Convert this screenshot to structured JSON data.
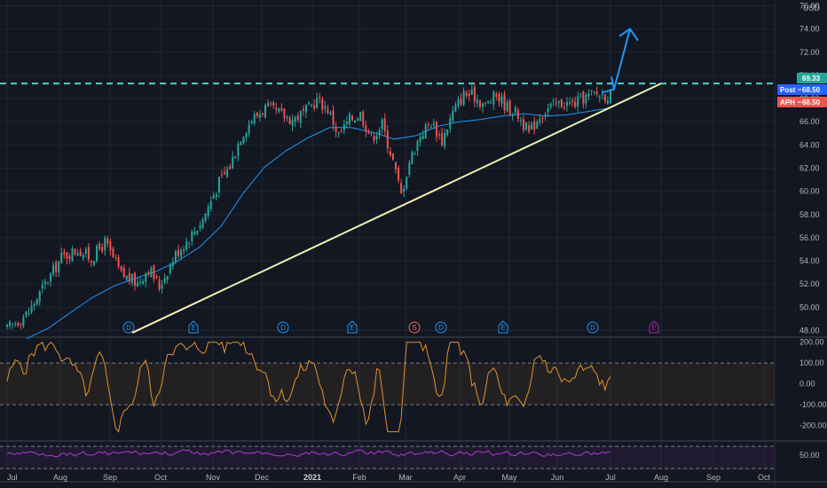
{
  "chart_data": {
    "type": "candlestick",
    "currency": "USD",
    "x_labels": [
      "Jul",
      "Aug",
      "Sep",
      "Oct",
      "Nov",
      "Dec",
      "2021",
      "Feb",
      "Mar",
      "Apr",
      "May",
      "Jun",
      "Jul",
      "Aug",
      "Sep",
      "Oct"
    ],
    "price_axis": {
      "ylim": [
        47.5,
        76.5
      ],
      "tick_labels": [
        "48.00",
        "50.00",
        "52.00",
        "54.00",
        "56.00",
        "58.00",
        "60.00",
        "62.00",
        "64.00",
        "66.00",
        "68.00",
        "70.00",
        "72.00",
        "74.00",
        "76.00"
      ]
    },
    "price_tags": [
      {
        "label": "",
        "value": "69.33",
        "color": "#26a69a"
      },
      {
        "label": "Post",
        "value": "68.50",
        "color": "#2962ff"
      },
      {
        "label": "APH",
        "value": "68.50",
        "color": "#ef5350"
      }
    ],
    "resistance_level": 69.3,
    "trendline": {
      "from": [
        "Sep",
        47.8
      ],
      "to": [
        "Aug",
        69.3
      ],
      "color": "#f0f0b0"
    },
    "breakout_arrow": {
      "from": [
        "Jul",
        68.5
      ],
      "to": [
        "Jul",
        74.0
      ],
      "color": "#2196f3"
    },
    "price_anchor": [
      [
        0,
        48.1
      ],
      [
        8,
        49.6
      ],
      [
        14,
        52.0
      ],
      [
        20,
        54.3
      ],
      [
        26,
        55.0
      ],
      [
        31,
        54.2
      ],
      [
        36,
        55.6
      ],
      [
        42,
        52.8
      ],
      [
        48,
        52.1
      ],
      [
        52,
        53.4
      ],
      [
        56,
        51.8
      ],
      [
        62,
        54.6
      ],
      [
        68,
        56.3
      ],
      [
        72,
        57.6
      ],
      [
        78,
        60.8
      ],
      [
        82,
        62.2
      ],
      [
        86,
        64.8
      ],
      [
        90,
        66.2
      ],
      [
        95,
        67.2
      ],
      [
        100,
        66.7
      ],
      [
        105,
        66.2
      ],
      [
        110,
        66.9
      ],
      [
        114,
        67.9
      ],
      [
        118,
        67.1
      ],
      [
        122,
        64.8
      ],
      [
        126,
        66.2
      ],
      [
        130,
        66.7
      ],
      [
        134,
        64.6
      ],
      [
        138,
        65.8
      ],
      [
        142,
        62.6
      ],
      [
        145,
        59.7
      ],
      [
        148,
        62.6
      ],
      [
        152,
        64.9
      ],
      [
        156,
        66.0
      ],
      [
        160,
        64.4
      ],
      [
        164,
        66.8
      ],
      [
        168,
        68.4
      ],
      [
        172,
        68.2
      ],
      [
        176,
        67.4
      ],
      [
        180,
        68.3
      ],
      [
        184,
        67.3
      ],
      [
        188,
        66.6
      ],
      [
        192,
        65.0
      ],
      [
        196,
        66.6
      ],
      [
        200,
        67.3
      ],
      [
        204,
        67.6
      ],
      [
        208,
        67.5
      ],
      [
        212,
        68.0
      ],
      [
        216,
        68.4
      ],
      [
        222,
        68.3
      ]
    ],
    "series": [
      {
        "name": "",
        "color": "#2196f3",
        "values": [
          47.3,
          48.2,
          49.5,
          50.8,
          51.8,
          52.5,
          53.1,
          54.0,
          55.2,
          57.0,
          59.8,
          62.1,
          63.5,
          64.6,
          65.5,
          65.5,
          65.1,
          64.5,
          64.8,
          65.6,
          66.0,
          66.2,
          66.5,
          66.7,
          66.5,
          66.6,
          66.9,
          67.2
        ]
      }
    ],
    "events": [
      {
        "kind": "D",
        "color": "#2196f3",
        "month": "Sep"
      },
      {
        "kind": "E",
        "color": "#2196f3",
        "month": "Oct"
      },
      {
        "kind": "D",
        "color": "#2196f3",
        "month": "Dec"
      },
      {
        "kind": "E",
        "color": "#2196f3",
        "month": "2021"
      },
      {
        "kind": "S",
        "color": "#ef6c4e",
        "month": "Mar"
      },
      {
        "kind": "D",
        "color": "#2196f3",
        "month": "Mar"
      },
      {
        "kind": "E",
        "color": "#2196f3",
        "month": "Apr"
      },
      {
        "kind": "D",
        "color": "#2196f3",
        "month": "Jun"
      },
      {
        "kind": "E",
        "color": "#9c27b0",
        "month": "Jul"
      }
    ],
    "oscillator_1": {
      "color": "#e0922c",
      "ylim": [
        -270,
        220
      ],
      "levels": [
        100,
        -100
      ],
      "tick_labels": [
        "200.00",
        "100.00",
        "0.00",
        "-100.00",
        "-200.00"
      ]
    },
    "oscillator_2": {
      "color": "#b03ad6",
      "level": 50,
      "tick_labels": [
        "50.00"
      ]
    }
  }
}
